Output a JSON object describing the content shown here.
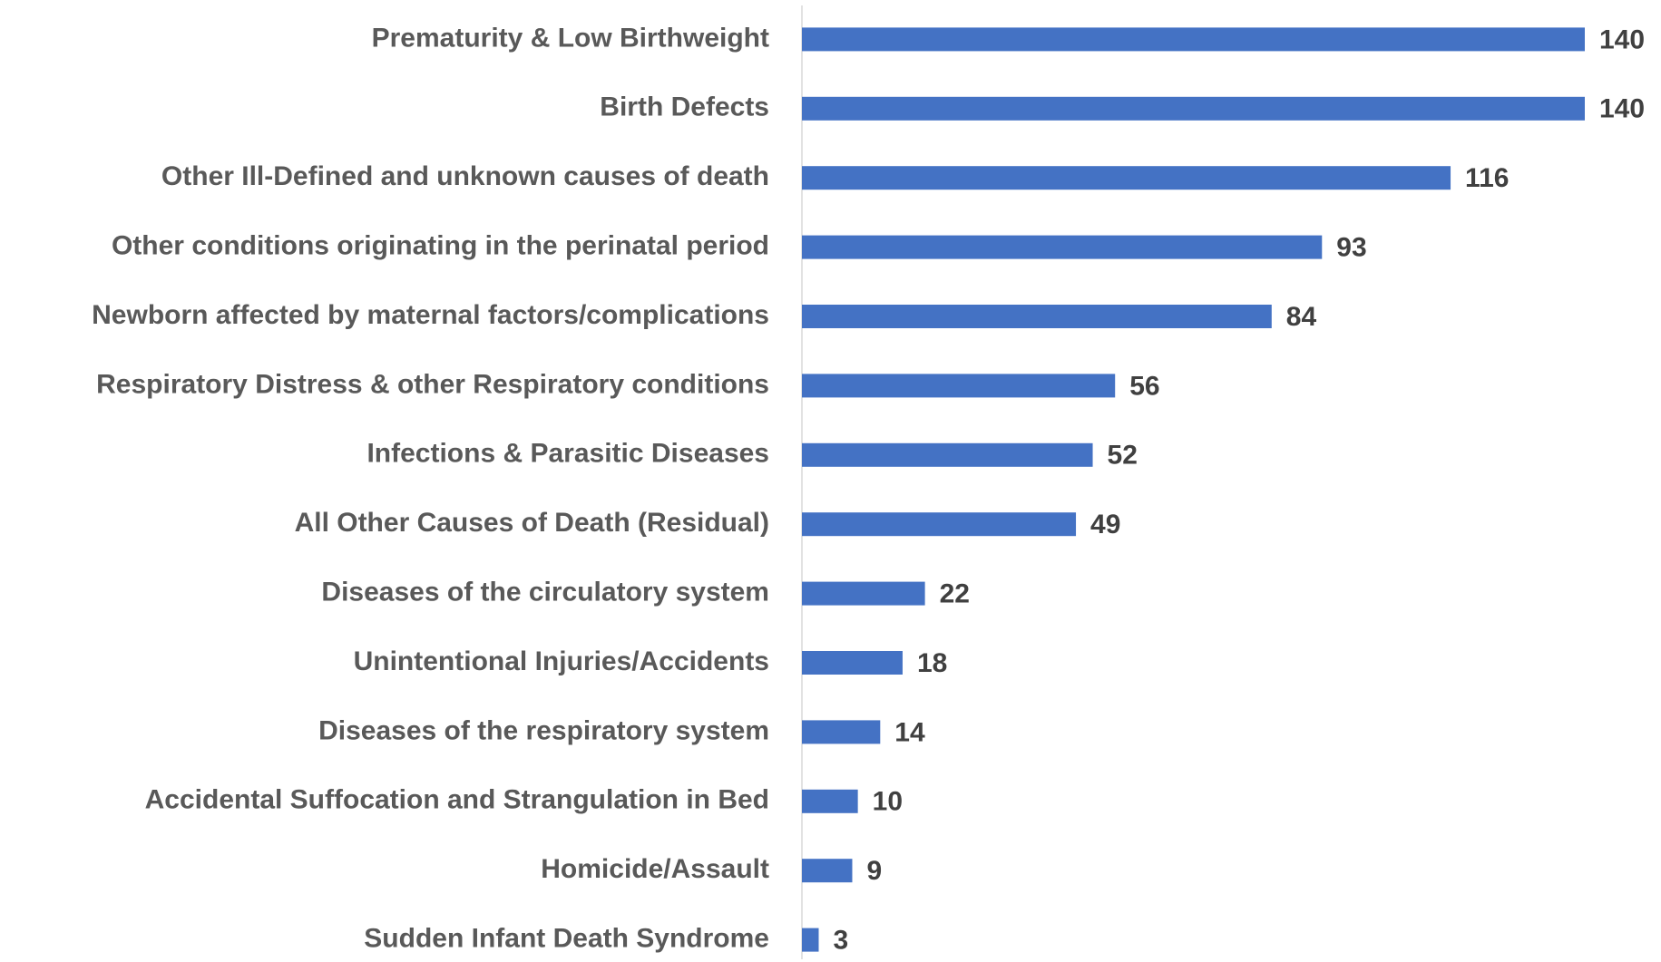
{
  "chart_data": {
    "type": "barh",
    "categories": [
      "Prematurity & Low Birthweight",
      "Birth Defects",
      "Other Ill-Defined and unknown causes of death",
      "Other conditions originating in the perinatal period",
      "Newborn affected by maternal factors/complications",
      "Respiratory Distress & other Respiratory conditions",
      "Infections & Parasitic Diseases",
      "All Other Causes of Death (Residual)",
      "Diseases of the circulatory system",
      "Unintentional Injuries/Accidents",
      "Diseases of the respiratory system",
      "Accidental Suffocation and Strangulation in Bed",
      "Homicide/Assault",
      "Sudden Infant Death Syndrome"
    ],
    "values": [
      140,
      140,
      116,
      93,
      84,
      56,
      52,
      49,
      22,
      18,
      14,
      10,
      9,
      3
    ],
    "color": "#4472c4",
    "xlim": [
      0,
      140
    ]
  }
}
